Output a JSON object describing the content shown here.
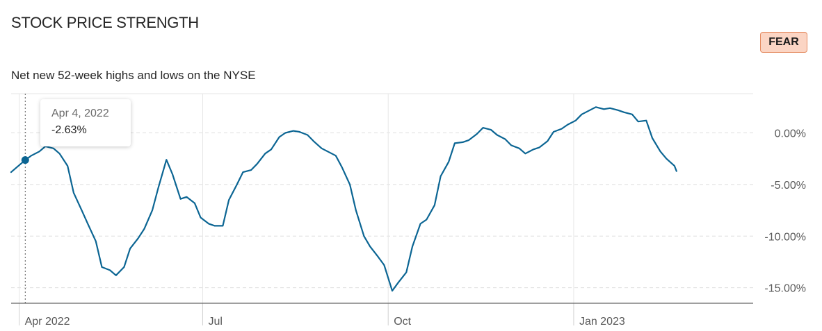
{
  "header": {
    "title": "STOCK PRICE STRENGTH",
    "badge": "FEAR",
    "badge_color": "#fbd5c4",
    "subtitle": "Net new 52-week highs and lows on the NYSE"
  },
  "tooltip": {
    "date": "Apr 4, 2022",
    "value": "-2.63%"
  },
  "chart_data": {
    "type": "line",
    "title": "STOCK PRICE STRENGTH",
    "subtitle": "Net new 52-week highs and lows on the NYSE",
    "xlabel": "",
    "ylabel": "",
    "ylim": [
      -16.5,
      3.8
    ],
    "xlim": [
      "2022-03-28",
      "2023-03-31"
    ],
    "y_ticks": [
      {
        "value": 0,
        "label": "0.00%"
      },
      {
        "value": -5,
        "label": "-5.00%"
      },
      {
        "value": -10,
        "label": "-10.00%"
      },
      {
        "value": -15,
        "label": "-15.00%"
      }
    ],
    "x_ticks": [
      {
        "date": "2022-04-01",
        "label": "Apr 2022"
      },
      {
        "date": "2022-07-01",
        "label": "Jul"
      },
      {
        "date": "2022-10-01",
        "label": "Oct"
      },
      {
        "date": "2023-01-01",
        "label": "Jan 2023"
      }
    ],
    "grid": true,
    "line_color": "#0b6593",
    "highlight": {
      "date": "2022-04-04",
      "y": -2.63
    },
    "series": [
      {
        "points": [
          [
            "2022-03-28",
            -3.8
          ],
          [
            "2022-03-31",
            -3.3
          ],
          [
            "2022-04-04",
            -2.63
          ],
          [
            "2022-04-07",
            -2.2
          ],
          [
            "2022-04-11",
            -1.8
          ],
          [
            "2022-04-14",
            -1.3
          ],
          [
            "2022-04-18",
            -1.5
          ],
          [
            "2022-04-21",
            -2.0
          ],
          [
            "2022-04-25",
            -3.2
          ],
          [
            "2022-04-28",
            -5.8
          ],
          [
            "2022-05-02",
            -7.5
          ],
          [
            "2022-05-05",
            -8.8
          ],
          [
            "2022-05-09",
            -10.5
          ],
          [
            "2022-05-12",
            -13.0
          ],
          [
            "2022-05-16",
            -13.3
          ],
          [
            "2022-05-19",
            -13.8
          ],
          [
            "2022-05-23",
            -13.0
          ],
          [
            "2022-05-26",
            -11.2
          ],
          [
            "2022-05-30",
            -10.2
          ],
          [
            "2022-06-02",
            -9.3
          ],
          [
            "2022-06-06",
            -7.5
          ],
          [
            "2022-06-09",
            -5.3
          ],
          [
            "2022-06-13",
            -2.6
          ],
          [
            "2022-06-16",
            -4.0
          ],
          [
            "2022-06-20",
            -6.4
          ],
          [
            "2022-06-23",
            -6.2
          ],
          [
            "2022-06-27",
            -6.8
          ],
          [
            "2022-06-30",
            -8.2
          ],
          [
            "2022-07-04",
            -8.8
          ],
          [
            "2022-07-07",
            -9.0
          ],
          [
            "2022-07-11",
            -9.0
          ],
          [
            "2022-07-14",
            -6.5
          ],
          [
            "2022-07-18",
            -5.0
          ],
          [
            "2022-07-21",
            -3.8
          ],
          [
            "2022-07-25",
            -3.6
          ],
          [
            "2022-07-28",
            -3.0
          ],
          [
            "2022-08-01",
            -2.0
          ],
          [
            "2022-08-04",
            -1.6
          ],
          [
            "2022-08-08",
            -0.4
          ],
          [
            "2022-08-11",
            0.0
          ],
          [
            "2022-08-15",
            0.2
          ],
          [
            "2022-08-18",
            0.1
          ],
          [
            "2022-08-22",
            -0.2
          ],
          [
            "2022-08-25",
            -0.8
          ],
          [
            "2022-08-29",
            -1.5
          ],
          [
            "2022-09-01",
            -1.8
          ],
          [
            "2022-09-05",
            -2.2
          ],
          [
            "2022-09-08",
            -3.3
          ],
          [
            "2022-09-12",
            -5.0
          ],
          [
            "2022-09-15",
            -7.5
          ],
          [
            "2022-09-19",
            -10.0
          ],
          [
            "2022-09-22",
            -11.0
          ],
          [
            "2022-09-26",
            -12.0
          ],
          [
            "2022-09-29",
            -12.8
          ],
          [
            "2022-10-03",
            -15.3
          ],
          [
            "2022-10-06",
            -14.5
          ],
          [
            "2022-10-10",
            -13.5
          ],
          [
            "2022-10-13",
            -11.0
          ],
          [
            "2022-10-17",
            -8.8
          ],
          [
            "2022-10-20",
            -8.4
          ],
          [
            "2022-10-24",
            -7.0
          ],
          [
            "2022-10-27",
            -4.2
          ],
          [
            "2022-10-31",
            -2.8
          ],
          [
            "2022-11-03",
            -1.0
          ],
          [
            "2022-11-07",
            -0.9
          ],
          [
            "2022-11-10",
            -0.7
          ],
          [
            "2022-11-14",
            -0.1
          ],
          [
            "2022-11-17",
            0.5
          ],
          [
            "2022-11-21",
            0.3
          ],
          [
            "2022-11-24",
            -0.2
          ],
          [
            "2022-11-28",
            -0.6
          ],
          [
            "2022-12-01",
            -1.2
          ],
          [
            "2022-12-05",
            -1.5
          ],
          [
            "2022-12-08",
            -2.0
          ],
          [
            "2022-12-12",
            -1.6
          ],
          [
            "2022-12-15",
            -1.4
          ],
          [
            "2022-12-19",
            -0.8
          ],
          [
            "2022-12-22",
            0.1
          ],
          [
            "2022-12-26",
            0.4
          ],
          [
            "2022-12-29",
            0.8
          ],
          [
            "2023-01-02",
            1.2
          ],
          [
            "2023-01-05",
            1.8
          ],
          [
            "2023-01-09",
            2.2
          ],
          [
            "2023-01-12",
            2.5
          ],
          [
            "2023-01-16",
            2.3
          ],
          [
            "2023-01-19",
            2.4
          ],
          [
            "2023-01-23",
            2.2
          ],
          [
            "2023-01-26",
            2.0
          ],
          [
            "2023-01-30",
            1.8
          ],
          [
            "2023-02-02",
            1.1
          ],
          [
            "2023-02-06",
            1.2
          ],
          [
            "2023-02-09",
            -0.5
          ],
          [
            "2023-02-13",
            -1.8
          ],
          [
            "2023-02-16",
            -2.5
          ],
          [
            "2023-02-20",
            -3.2
          ],
          [
            "2023-02-21",
            -3.7
          ]
        ]
      }
    ]
  }
}
